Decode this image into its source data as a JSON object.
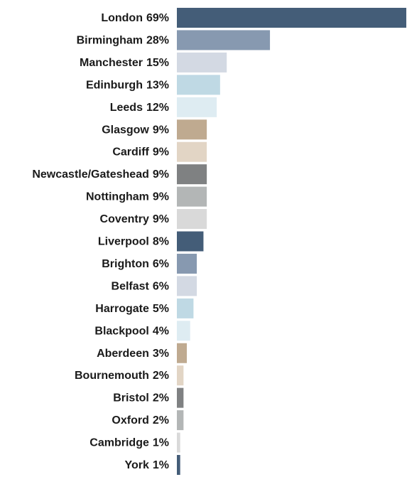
{
  "chart_data": {
    "type": "bar",
    "orientation": "horizontal",
    "categories": [
      "London",
      "Birmingham",
      "Manchester",
      "Edinburgh",
      "Leeds",
      "Glasgow",
      "Cardiff",
      "Newcastle/Gateshead",
      "Nottingham",
      "Coventry",
      "Liverpool",
      "Brighton",
      "Belfast",
      "Harrogate",
      "Blackpool",
      "Aberdeen",
      "Bournemouth",
      "Bristol",
      "Oxford",
      "Cambridge",
      "York"
    ],
    "values": [
      69,
      28,
      15,
      13,
      12,
      9,
      9,
      9,
      9,
      9,
      8,
      6,
      6,
      5,
      4,
      3,
      2,
      2,
      2,
      1,
      1
    ],
    "value_labels": [
      "69%",
      "28%",
      "15%",
      "13%",
      "12%",
      "9%",
      "9%",
      "9%",
      "9%",
      "9%",
      "8%",
      "6%",
      "6%",
      "5%",
      "4%",
      "3%",
      "2%",
      "2%",
      "2%",
      "1%",
      "1%"
    ],
    "colors": [
      "#445d78",
      "#8799b0",
      "#d3d9e3",
      "#bfd9e4",
      "#deecf2",
      "#bfaa90",
      "#e2d5c5",
      "#7f8182",
      "#b3b6b6",
      "#d9d9d9",
      "#445d78",
      "#8799b0",
      "#d3d9e3",
      "#bfd9e4",
      "#deecf2",
      "#bfaa90",
      "#e2d5c5",
      "#7f8182",
      "#b3b6b6",
      "#d9d9d9",
      "#445d78"
    ]
  }
}
